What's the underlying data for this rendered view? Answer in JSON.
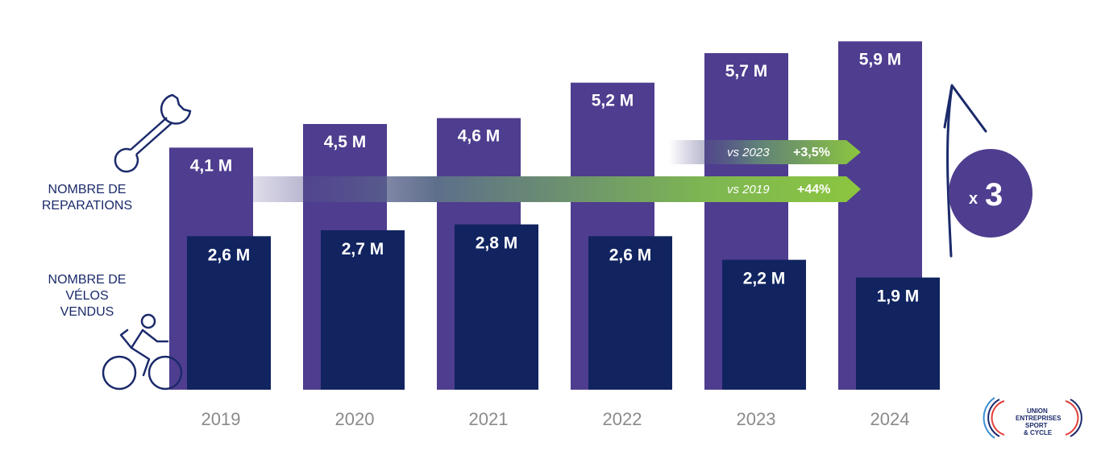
{
  "chart_data": {
    "type": "bar",
    "categories": [
      "2019",
      "2020",
      "2021",
      "2022",
      "2023",
      "2024"
    ],
    "series": [
      {
        "name": "NOMBRE DE REPARATIONS",
        "values": [
          4.1,
          4.5,
          4.6,
          5.2,
          5.7,
          5.9
        ],
        "labels": [
          "4,1 M",
          "4,5 M",
          "4,6 M",
          "5,2 M",
          "5,7 M",
          "5,9 M"
        ],
        "color": "#4f3d8f"
      },
      {
        "name": "NOMBRE DE VÉLOS VENDUS",
        "values": [
          2.6,
          2.7,
          2.8,
          2.6,
          2.2,
          1.9
        ],
        "labels": [
          "2,6 M",
          "2,7 M",
          "2,8 M",
          "2,6 M",
          "2,2 M",
          "1,9 M"
        ],
        "color": "#112460"
      }
    ],
    "title": "",
    "xlabel": "",
    "ylabel": "",
    "ylim": [
      0,
      6.3
    ],
    "grid": false
  },
  "side_labels": {
    "repairs": [
      "NOMBRE DE",
      "REPARATIONS"
    ],
    "bikes": [
      "NOMBRE DE",
      "VÉLOS",
      "VENDUS"
    ]
  },
  "comparisons": [
    {
      "label": "vs 2023",
      "value": "+3,5%"
    },
    {
      "label": "vs 2019",
      "value": "+44%"
    }
  ],
  "multiplier": {
    "prefix": "x",
    "value": "3"
  },
  "logo": {
    "lines": [
      "UNION",
      "ENTREPRISES",
      "SPORT",
      "& CYCLE"
    ]
  },
  "colors": {
    "repairs": "#4f3d8f",
    "bikes": "#112460",
    "arrow_green": "#8cc63f",
    "category_text": "#8a8a8a",
    "side_text": "#1b2a6b"
  },
  "icons": [
    "wrench-icon",
    "cyclist-icon",
    "growth-arrow-icon",
    "logo-icon"
  ]
}
